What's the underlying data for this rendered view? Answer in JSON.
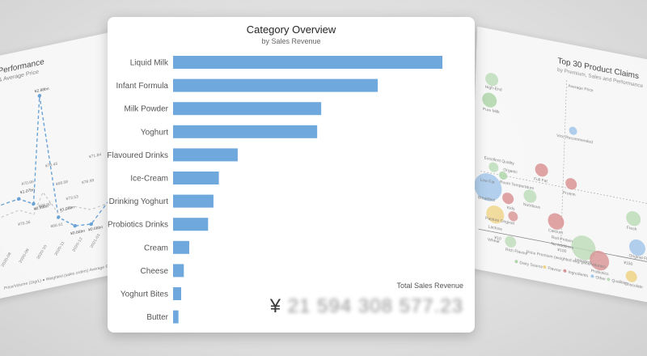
{
  "main_card": {
    "title": "Category Overview",
    "subtitle": "by Sales Revenue",
    "total_label": "Total Sales Revenue",
    "total_currency": "¥",
    "total_digits": "21 594 308 577.23"
  },
  "left_panel": {
    "title": "Performance",
    "subtitle": "& Average Price",
    "legend": "Price/Volume (1kg/L) ● Weighted (sales orders) Average Price/",
    "point_labels": [
      "¥2.88bn",
      "¥1.07bn",
      "¥0.99bn",
      "¥1.08bn",
      "¥0.66bn",
      "¥0.66bn"
    ],
    "value_labels": [
      "¥70.86",
      "¥76.45",
      "¥68.58",
      "¥68.60",
      "¥78.99",
      "¥71.84",
      "¥73.53",
      "¥76.36",
      "¥66.61"
    ],
    "x_ticks": [
      "2020-08",
      "2020-09",
      "2020-10",
      "2020-11",
      "2020-12",
      "2021-01",
      "2021-02"
    ]
  },
  "right_panel": {
    "title": "Top 30 Product Claims",
    "subtitle": "by Premium, Sales and Performance",
    "axis_label": "Average Price",
    "xlabel": "Price Premium (weighted avg. price/volume)",
    "x_ticks": [
      "¥10",
      "¥100",
      "¥150"
    ],
    "legend": [
      "Dairy Source",
      "Flavour",
      "Ingredients",
      "Other",
      "Qualities"
    ],
    "bubble_labels": [
      "High-End",
      "Pure Milk",
      "Vice Recommended",
      "Excellent Quality",
      "Organic",
      "Full Fat",
      "Protein",
      "Low Fat",
      "Room Temperature",
      "Nutritious",
      "Fresh",
      "Breakfast",
      "Kids",
      "Pasture Original",
      "Calcium",
      "Red Protein",
      "No Additives",
      "Original Flavour",
      "Lactose",
      "Imported",
      "Wheat",
      "Rich Flavour",
      "Probiotics",
      "Chocolate"
    ]
  },
  "colors": {
    "bar": "#6fa8dc",
    "dairy_source": "#a8d5a2",
    "flavour": "#f2d27a",
    "ingredients": "#d98a8a",
    "other": "#9ec6ec",
    "qualities": "#b9dcb4"
  },
  "chart_data": [
    {
      "type": "bar",
      "orientation": "horizontal",
      "title": "Category Overview",
      "subtitle": "by Sales Revenue",
      "categories": [
        "Liquid Milk",
        "Infant Formula",
        "Milk Powder",
        "Yoghurt",
        "Flavoured Drinks",
        "Ice-Cream",
        "Drinking Yoghurt",
        "Probiotics Drinks",
        "Cream",
        "Cheese",
        "Yoghurt Bites",
        "Butter"
      ],
      "values": [
        100,
        76,
        55,
        53.5,
        24,
        17,
        15,
        13,
        6,
        4,
        3,
        2
      ],
      "xlim": [
        0,
        100
      ],
      "grid": false,
      "legend": "none"
    }
  ]
}
